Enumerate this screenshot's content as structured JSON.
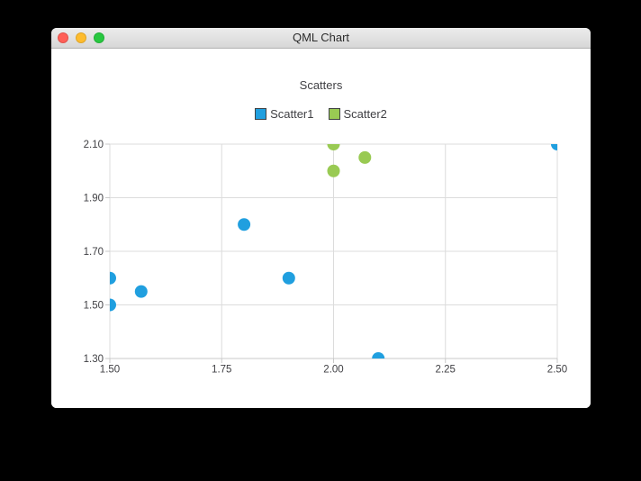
{
  "window": {
    "title": "QML Chart",
    "traffic_lights": [
      {
        "name": "close",
        "color": "#ff5f57"
      },
      {
        "name": "minimize",
        "color": "#febc2e"
      },
      {
        "name": "zoom",
        "color": "#28c840"
      }
    ]
  },
  "chart_data": {
    "type": "scatter",
    "title": "Scatters",
    "series": [
      {
        "name": "Scatter1",
        "color": "#209fdf",
        "points": [
          [
            1.5,
            1.5
          ],
          [
            1.5,
            1.6
          ],
          [
            1.57,
            1.55
          ],
          [
            1.8,
            1.8
          ],
          [
            1.9,
            1.6
          ],
          [
            2.1,
            1.3
          ],
          [
            2.5,
            2.1
          ]
        ]
      },
      {
        "name": "Scatter2",
        "color": "#99ca53",
        "points": [
          [
            2.0,
            2.0
          ],
          [
            2.0,
            2.1
          ],
          [
            2.07,
            2.05
          ]
        ]
      }
    ],
    "xlim": [
      1.5,
      2.5
    ],
    "ylim": [
      1.3,
      2.1
    ],
    "x_ticks": [
      1.5,
      1.75,
      2.0,
      2.25,
      2.5
    ],
    "y_ticks": [
      1.3,
      1.5,
      1.7,
      1.9,
      2.1
    ],
    "x_tick_labels": [
      "1.50",
      "1.75",
      "2.00",
      "2.25",
      "2.50"
    ],
    "y_tick_labels": [
      "1.30",
      "1.50",
      "1.70",
      "1.90",
      "2.10"
    ],
    "grid": true,
    "legend_position": "top",
    "marker_radius": 7
  },
  "colors": {
    "grid_line": "#dcdcdc",
    "axis_line": "#c9c9c9",
    "axis_label": "#404044",
    "legend_marker_border": "#404244",
    "chart_background": "#ffffff"
  }
}
